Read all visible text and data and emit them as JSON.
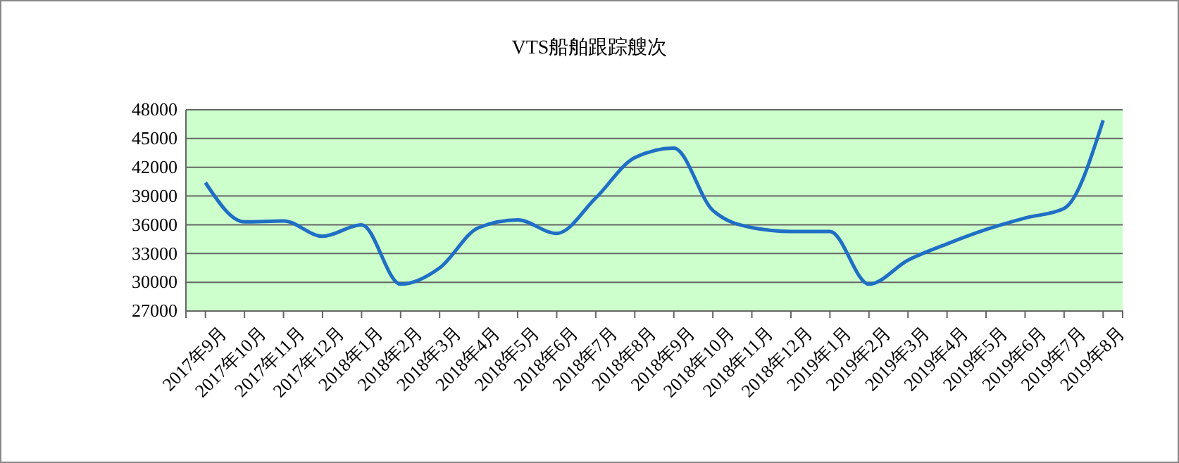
{
  "chart_data": {
    "type": "line",
    "title": "VTS船舶跟踪艘次",
    "categories": [
      "2017年9月",
      "2017年10月",
      "2017年11月",
      "2017年12月",
      "2018年1月",
      "2018年2月",
      "2018年3月",
      "2018年4月",
      "2018年5月",
      "2018年6月",
      "2018年7月",
      "2018年8月",
      "2018年9月",
      "2018年10月",
      "2018年11月",
      "2018年12月",
      "2019年1月",
      "2019年2月",
      "2019年3月",
      "2019年4月",
      "2019年5月",
      "2019年6月",
      "2019年7月",
      "2019年8月"
    ],
    "series": [
      {
        "color": "#1f6fc5",
        "values": [
          40400,
          36300,
          36400,
          34800,
          36000,
          29800,
          31500,
          35700,
          36500,
          35100,
          38800,
          43000,
          44000,
          37500,
          35700,
          35300,
          35300,
          29800,
          32300,
          34000,
          35500,
          36700,
          37700,
          46900
        ]
      }
    ],
    "ylim": [
      27000,
      48000
    ],
    "yticks": [
      27000,
      30000,
      33000,
      36000,
      39000,
      42000,
      45000,
      48000
    ],
    "grid": "y",
    "legend": false,
    "marker": "none",
    "line_style": "solid"
  }
}
